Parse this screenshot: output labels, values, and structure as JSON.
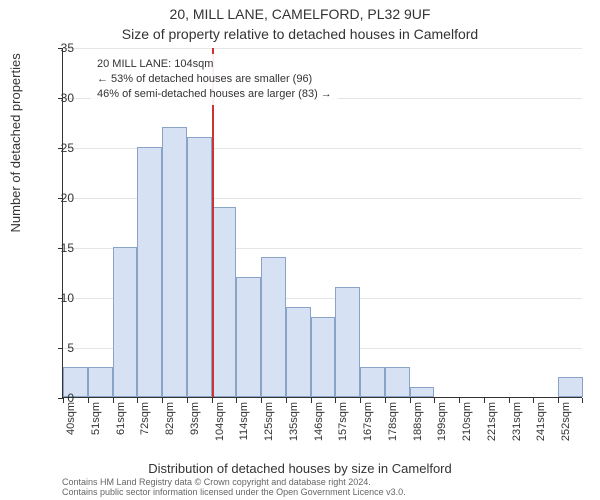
{
  "title_line1": "20, MILL LANE, CAMELFORD, PL32 9UF",
  "title_line2": "Size of property relative to detached houses in Camelford",
  "ylabel": "Number of detached properties",
  "xlabel": "Distribution of detached houses by size in Camelford",
  "footer_line1": "Contains HM Land Registry data © Crown copyright and database right 2024.",
  "footer_line2": "Contains public sector information licensed under the Open Government Licence v3.0.",
  "chart": {
    "type": "histogram",
    "background_color": "#ffffff",
    "grid_color": "#e5e5e5",
    "axis_color": "#333333",
    "bar_fill": "#d6e2f3",
    "bar_stroke": "#8aa4c8",
    "reference_line_color": "#cc3333",
    "ylim": [
      0,
      35
    ],
    "ytick_step": 5,
    "yticks": [
      0,
      5,
      10,
      15,
      20,
      25,
      30,
      35
    ],
    "tick_fontsize": 12,
    "label_fontsize": 13,
    "title_fontsize": 14,
    "x_tick_labels": [
      "40sqm",
      "51sqm",
      "61sqm",
      "72sqm",
      "82sqm",
      "93sqm",
      "104sqm",
      "114sqm",
      "125sqm",
      "135sqm",
      "146sqm",
      "157sqm",
      "167sqm",
      "178sqm",
      "188sqm",
      "199sqm",
      "210sqm",
      "221sqm",
      "231sqm",
      "241sqm",
      "252sqm"
    ],
    "bar_values": [
      3,
      3,
      15,
      25,
      27,
      26,
      19,
      12,
      14,
      9,
      8,
      11,
      3,
      3,
      1,
      0,
      0,
      0,
      0,
      0,
      2
    ],
    "reference_index_right_edge": 6,
    "bar_width_ratio": 1.0
  },
  "annotation": {
    "line1": "20 MILL LANE: 104sqm",
    "line2": "← 53% of detached houses are smaller (96)",
    "line3": "46% of semi-detached houses are larger (83) →",
    "fontsize": 11
  },
  "colors": {
    "text": "#333333",
    "footer_text": "#666666"
  }
}
